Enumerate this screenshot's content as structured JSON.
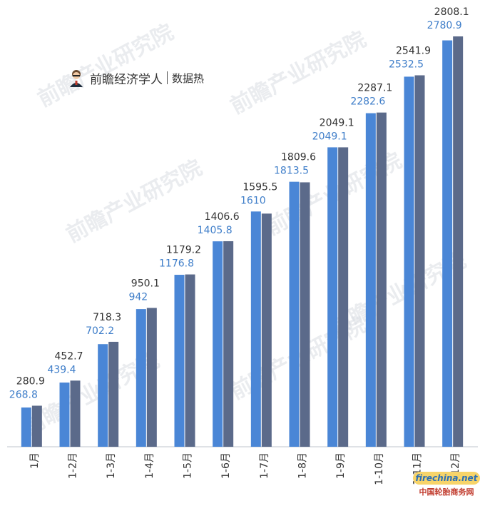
{
  "brand": {
    "name": "前瞻经济学人",
    "sub": "数据热"
  },
  "watermark": {
    "text": "前瞻产业研究院"
  },
  "corner_logo": {
    "top": "firechina.net",
    "bottom": "中国轮胎商务网"
  },
  "colors": {
    "series_a": "#4a86d6",
    "series_b": "#5b6a8a",
    "label_a": "#3f7ec9",
    "label_b": "#333333",
    "axis": "#bfc5ce"
  },
  "chart_data": {
    "type": "bar",
    "categories": [
      "1月",
      "1-2月",
      "1-3月",
      "1-4月",
      "1-5月",
      "1-6月",
      "1-7月",
      "1-8月",
      "1-9月",
      "1-10月",
      "1-11月",
      "1-12月"
    ],
    "series": [
      {
        "values": [
          268.8,
          439.4,
          702.2,
          942,
          1176.8,
          1405.8,
          1610,
          1813.5,
          2049.1,
          2282.6,
          2532.5,
          2780.9
        ]
      },
      {
        "values": [
          280.9,
          452.7,
          718.3,
          950.1,
          1179.2,
          1406.6,
          1595.5,
          1809.6,
          2049.1,
          2287.1,
          2541.9,
          2808.1
        ]
      }
    ],
    "value_labels": {
      "a": [
        "268.8",
        "439.4",
        "702.2",
        "942",
        "1176.8",
        "1405.8",
        "1610",
        "1813.5",
        "2049.1",
        "2282.6",
        "2532.5",
        "2780.9"
      ],
      "b": [
        "280.9",
        "452.7",
        "718.3",
        "950.1",
        "1179.2",
        "1406.6",
        "1595.5",
        "1809.6",
        "2049.1",
        "2287.1",
        "2541.9",
        "2808.1"
      ]
    },
    "ylim": [
      0,
      2808.1
    ],
    "grid": false,
    "legend": "none"
  }
}
